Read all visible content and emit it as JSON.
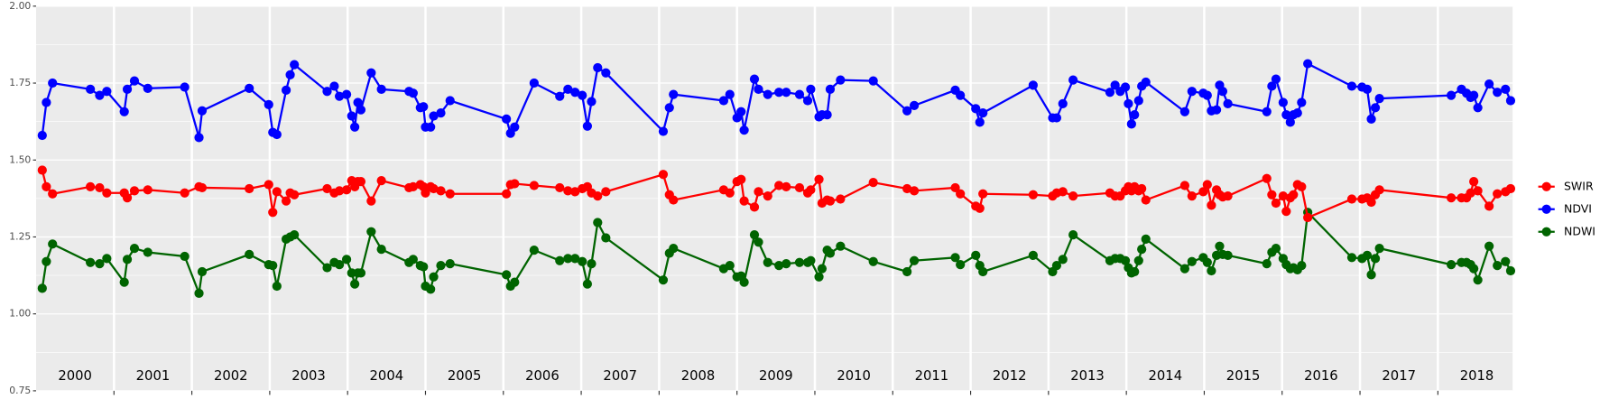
{
  "chart_data": {
    "type": "line",
    "x": [
      2000.079,
      2000.132,
      2000.211,
      2000.697,
      2000.816,
      2000.908,
      2001.132,
      2001.171,
      2001.263,
      2001.434,
      2001.908,
      2002.092,
      2002.132,
      2002.737,
      2002.987,
      2003.039,
      2003.092,
      2003.211,
      2003.263,
      2003.316,
      2003.737,
      2003.829,
      2003.895,
      2003.987,
      2004.053,
      2004.092,
      2004.132,
      2004.171,
      2004.303,
      2004.434,
      2004.789,
      2004.842,
      2004.934,
      2004.974,
      2005.0,
      2005.066,
      2005.105,
      2005.197,
      2005.316,
      2006.039,
      2006.092,
      2006.145,
      2006.395,
      2006.724,
      2006.829,
      2006.921,
      2007.013,
      2007.079,
      2007.132,
      2007.211,
      2007.316,
      2008.053,
      2008.132,
      2008.184,
      2008.829,
      2008.908,
      2009.0,
      2009.053,
      2009.092,
      2009.224,
      2009.276,
      2009.395,
      2009.539,
      2009.632,
      2009.803,
      2009.908,
      2009.947,
      2010.053,
      2010.092,
      2010.158,
      2010.197,
      2010.329,
      2010.75,
      2011.184,
      2011.276,
      2011.803,
      2011.868,
      2012.066,
      2012.118,
      2012.158,
      2012.803,
      2013.053,
      2013.105,
      2013.184,
      2013.316,
      2013.789,
      2013.855,
      2013.921,
      2013.987,
      2014.026,
      2014.066,
      2014.105,
      2014.158,
      2014.197,
      2014.25,
      2014.75,
      2014.842,
      2014.987,
      2015.039,
      2015.092,
      2015.158,
      2015.197,
      2015.237,
      2015.303,
      2015.803,
      2015.868,
      2015.921,
      2016.013,
      2016.053,
      2016.105,
      2016.145,
      2016.197,
      2016.25,
      2016.329,
      2016.895,
      2017.026,
      2017.092,
      2017.145,
      2017.197,
      2017.25,
      2018.171,
      2018.303,
      2018.368,
      2018.421,
      2018.461,
      2018.513,
      2018.658,
      2018.763,
      2018.868,
      2018.934
    ],
    "series": [
      {
        "name": "SWIR",
        "color": "#ff0000",
        "values": [
          1.467,
          1.413,
          1.39,
          1.413,
          1.41,
          1.393,
          1.393,
          1.377,
          1.4,
          1.403,
          1.393,
          1.413,
          1.41,
          1.407,
          1.42,
          1.33,
          1.397,
          1.367,
          1.393,
          1.387,
          1.407,
          1.393,
          1.4,
          1.403,
          1.433,
          1.413,
          1.43,
          1.43,
          1.367,
          1.433,
          1.41,
          1.413,
          1.42,
          1.413,
          1.393,
          1.413,
          1.407,
          1.4,
          1.39,
          1.39,
          1.42,
          1.423,
          1.417,
          1.41,
          1.4,
          1.397,
          1.407,
          1.413,
          1.393,
          1.383,
          1.397,
          1.453,
          1.387,
          1.37,
          1.403,
          1.393,
          1.43,
          1.437,
          1.367,
          1.347,
          1.397,
          1.383,
          1.417,
          1.413,
          1.41,
          1.393,
          1.403,
          1.437,
          1.36,
          1.37,
          1.367,
          1.373,
          1.427,
          1.407,
          1.4,
          1.41,
          1.39,
          1.35,
          1.343,
          1.39,
          1.387,
          1.383,
          1.393,
          1.397,
          1.383,
          1.393,
          1.383,
          1.383,
          1.4,
          1.413,
          1.4,
          1.413,
          1.4,
          1.407,
          1.37,
          1.417,
          1.383,
          1.397,
          1.42,
          1.353,
          1.403,
          1.387,
          1.38,
          1.383,
          1.44,
          1.387,
          1.36,
          1.383,
          1.333,
          1.377,
          1.387,
          1.42,
          1.413,
          1.313,
          1.373,
          1.373,
          1.377,
          1.363,
          1.387,
          1.403,
          1.377,
          1.377,
          1.377,
          1.393,
          1.43,
          1.4,
          1.35,
          1.39,
          1.397,
          1.407
        ]
      },
      {
        "name": "NDVI",
        "color": "#0000ff",
        "values": [
          1.58,
          1.687,
          1.75,
          1.73,
          1.71,
          1.723,
          1.657,
          1.73,
          1.757,
          1.733,
          1.737,
          1.573,
          1.66,
          1.733,
          1.68,
          1.59,
          1.583,
          1.727,
          1.777,
          1.81,
          1.723,
          1.74,
          1.707,
          1.713,
          1.643,
          1.607,
          1.687,
          1.663,
          1.783,
          1.73,
          1.723,
          1.717,
          1.67,
          1.673,
          1.607,
          1.607,
          1.643,
          1.653,
          1.693,
          1.633,
          1.587,
          1.607,
          1.75,
          1.707,
          1.73,
          1.72,
          1.71,
          1.61,
          1.69,
          1.8,
          1.783,
          1.593,
          1.67,
          1.713,
          1.693,
          1.713,
          1.637,
          1.657,
          1.597,
          1.763,
          1.73,
          1.713,
          1.72,
          1.72,
          1.713,
          1.693,
          1.73,
          1.64,
          1.647,
          1.647,
          1.73,
          1.76,
          1.757,
          1.66,
          1.677,
          1.727,
          1.71,
          1.667,
          1.623,
          1.653,
          1.743,
          1.637,
          1.637,
          1.683,
          1.76,
          1.72,
          1.743,
          1.723,
          1.737,
          1.683,
          1.617,
          1.647,
          1.693,
          1.74,
          1.753,
          1.657,
          1.723,
          1.717,
          1.71,
          1.66,
          1.663,
          1.743,
          1.723,
          1.683,
          1.657,
          1.74,
          1.763,
          1.687,
          1.647,
          1.623,
          1.647,
          1.653,
          1.687,
          1.813,
          1.74,
          1.737,
          1.73,
          1.633,
          1.67,
          1.7,
          1.71,
          1.73,
          1.717,
          1.703,
          1.71,
          1.67,
          1.747,
          1.72,
          1.73,
          1.693
        ]
      },
      {
        "name": "NDWI",
        "color": "#006400",
        "values": [
          1.083,
          1.17,
          1.227,
          1.167,
          1.163,
          1.18,
          1.103,
          1.177,
          1.213,
          1.2,
          1.187,
          1.067,
          1.137,
          1.193,
          1.16,
          1.157,
          1.09,
          1.243,
          1.25,
          1.257,
          1.15,
          1.167,
          1.16,
          1.177,
          1.133,
          1.097,
          1.133,
          1.133,
          1.267,
          1.21,
          1.167,
          1.177,
          1.157,
          1.153,
          1.09,
          1.08,
          1.12,
          1.157,
          1.163,
          1.127,
          1.09,
          1.103,
          1.207,
          1.173,
          1.18,
          1.18,
          1.17,
          1.097,
          1.163,
          1.297,
          1.247,
          1.11,
          1.197,
          1.213,
          1.147,
          1.157,
          1.12,
          1.123,
          1.103,
          1.257,
          1.233,
          1.167,
          1.157,
          1.163,
          1.167,
          1.167,
          1.173,
          1.12,
          1.147,
          1.207,
          1.197,
          1.22,
          1.17,
          1.137,
          1.173,
          1.183,
          1.16,
          1.19,
          1.157,
          1.137,
          1.19,
          1.137,
          1.157,
          1.177,
          1.257,
          1.173,
          1.18,
          1.18,
          1.173,
          1.15,
          1.133,
          1.137,
          1.173,
          1.21,
          1.243,
          1.147,
          1.17,
          1.183,
          1.167,
          1.14,
          1.19,
          1.22,
          1.193,
          1.19,
          1.163,
          1.2,
          1.213,
          1.18,
          1.16,
          1.147,
          1.15,
          1.143,
          1.157,
          1.33,
          1.183,
          1.18,
          1.19,
          1.127,
          1.18,
          1.213,
          1.16,
          1.167,
          1.167,
          1.16,
          1.147,
          1.11,
          1.22,
          1.157,
          1.17,
          1.14
        ]
      }
    ],
    "xlim": [
      2000,
      2018.96
    ],
    "xticks": [
      {
        "value": 2000.5,
        "label": "2000"
      },
      {
        "value": 2001.5,
        "label": "2001"
      },
      {
        "value": 2002.5,
        "label": "2002"
      },
      {
        "value": 2003.5,
        "label": "2003"
      },
      {
        "value": 2004.5,
        "label": "2004"
      },
      {
        "value": 2005.5,
        "label": "2005"
      },
      {
        "value": 2006.5,
        "label": "2006"
      },
      {
        "value": 2007.5,
        "label": "2007"
      },
      {
        "value": 2008.5,
        "label": "2008"
      },
      {
        "value": 2009.5,
        "label": "2009"
      },
      {
        "value": 2010.5,
        "label": "2010"
      },
      {
        "value": 2011.5,
        "label": "2011"
      },
      {
        "value": 2012.5,
        "label": "2012"
      },
      {
        "value": 2013.5,
        "label": "2013"
      },
      {
        "value": 2014.5,
        "label": "2014"
      },
      {
        "value": 2015.5,
        "label": "2015"
      },
      {
        "value": 2016.5,
        "label": "2016"
      },
      {
        "value": 2017.5,
        "label": "2017"
      },
      {
        "value": 2018.5,
        "label": "2018"
      }
    ],
    "xgrid": [
      2001,
      2002,
      2003,
      2004,
      2005,
      2006,
      2007,
      2008,
      2009,
      2010,
      2011,
      2012,
      2013,
      2014,
      2015,
      2016,
      2017,
      2018
    ],
    "ylim": [
      0.75,
      2
    ],
    "yticks": [
      0.75,
      {
        "value": 1,
        "label": "1.00"
      },
      1.25,
      {
        "value": 1.5,
        "label": "1.50"
      },
      1.75,
      {
        "value": 2,
        "label": "2.00"
      }
    ],
    "yminor": [
      0.875,
      1.125,
      1.375,
      1.625,
      1.875
    ],
    "grid": true,
    "legend": "right"
  }
}
